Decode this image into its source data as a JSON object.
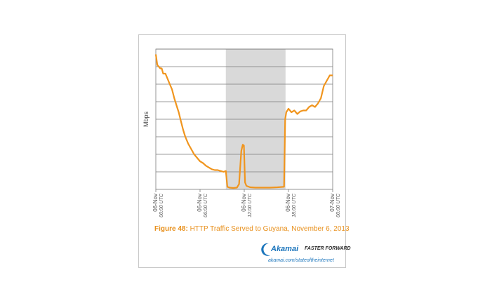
{
  "chart_data": {
    "type": "line",
    "title": "",
    "xlabel": "",
    "ylabel": "Mbps",
    "x_unit": "hours since 06-Nov 00:00 UTC",
    "xlim": [
      0,
      24
    ],
    "ylim": [
      0,
      8
    ],
    "y_tick_labels": false,
    "grid": true,
    "legend": "none",
    "highlight_band": [
      9.5,
      17.6
    ],
    "x_ticks": [
      {
        "x": 0,
        "label": "06-Nov",
        "sub": "00:00 UTC"
      },
      {
        "x": 6,
        "label": "06-Nov",
        "sub": "06:00 UTC"
      },
      {
        "x": 12,
        "label": "06-Nov",
        "sub": "12:00 UTC"
      },
      {
        "x": 18,
        "label": "06-Nov",
        "sub": "18:00 UTC"
      },
      {
        "x": 24,
        "label": "07-Nov",
        "sub": "00:00 UTC"
      }
    ],
    "series": [
      {
        "name": "",
        "color": "#f0951e",
        "points": [
          [
            0.0,
            7.7
          ],
          [
            0.2,
            7.1
          ],
          [
            0.4,
            7.0
          ],
          [
            0.6,
            6.9
          ],
          [
            0.8,
            6.9
          ],
          [
            1.0,
            6.6
          ],
          [
            1.3,
            6.6
          ],
          [
            1.6,
            6.3
          ],
          [
            1.9,
            6.0
          ],
          [
            2.2,
            5.7
          ],
          [
            2.5,
            5.2
          ],
          [
            2.8,
            4.8
          ],
          [
            3.1,
            4.4
          ],
          [
            3.4,
            3.9
          ],
          [
            3.7,
            3.4
          ],
          [
            4.0,
            3.0
          ],
          [
            4.4,
            2.6
          ],
          [
            4.8,
            2.3
          ],
          [
            5.2,
            2.0
          ],
          [
            5.6,
            1.8
          ],
          [
            6.0,
            1.6
          ],
          [
            6.4,
            1.5
          ],
          [
            6.8,
            1.35
          ],
          [
            7.2,
            1.25
          ],
          [
            7.6,
            1.15
          ],
          [
            8.0,
            1.1
          ],
          [
            8.4,
            1.1
          ],
          [
            8.8,
            1.05
          ],
          [
            9.2,
            1.0
          ],
          [
            9.5,
            1.05
          ],
          [
            9.7,
            0.15
          ],
          [
            10.0,
            0.1
          ],
          [
            10.5,
            0.08
          ],
          [
            11.0,
            0.1
          ],
          [
            11.3,
            0.3
          ],
          [
            11.6,
            2.2
          ],
          [
            11.8,
            2.55
          ],
          [
            11.95,
            2.5
          ],
          [
            12.1,
            0.4
          ],
          [
            12.3,
            0.2
          ],
          [
            12.8,
            0.12
          ],
          [
            13.5,
            0.1
          ],
          [
            14.5,
            0.1
          ],
          [
            15.5,
            0.1
          ],
          [
            16.5,
            0.12
          ],
          [
            17.4,
            0.15
          ],
          [
            17.55,
            4.0
          ],
          [
            17.7,
            4.4
          ],
          [
            18.0,
            4.6
          ],
          [
            18.4,
            4.4
          ],
          [
            18.8,
            4.5
          ],
          [
            19.2,
            4.3
          ],
          [
            19.6,
            4.45
          ],
          [
            20.0,
            4.5
          ],
          [
            20.4,
            4.5
          ],
          [
            20.8,
            4.7
          ],
          [
            21.2,
            4.8
          ],
          [
            21.6,
            4.7
          ],
          [
            22.0,
            4.9
          ],
          [
            22.4,
            5.2
          ],
          [
            22.8,
            5.9
          ],
          [
            23.2,
            6.2
          ],
          [
            23.6,
            6.5
          ],
          [
            24.0,
            6.5
          ]
        ]
      }
    ]
  },
  "caption": {
    "figure_label": "Figure 48:",
    "text": " HTTP Traffic Served to Guyana, November 6, 2013"
  },
  "branding": {
    "logo": "Akamai",
    "tagline": "FASTER FORWARD",
    "url": "akamai.com/stateoftheinternet",
    "accent": "#1b75bc",
    "brand_orange": "#f0951e"
  }
}
